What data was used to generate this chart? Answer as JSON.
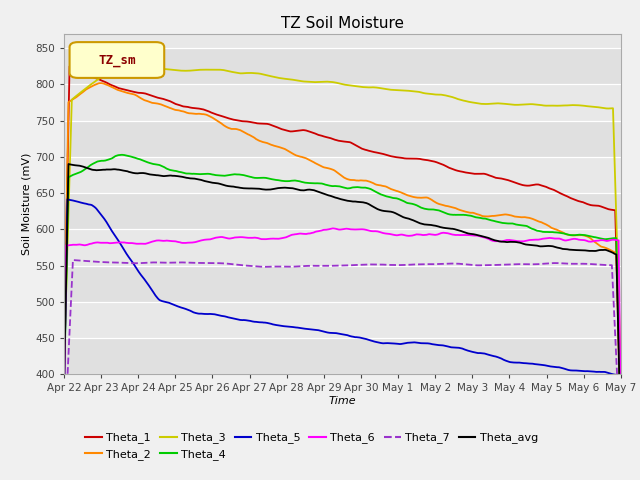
{
  "title": "TZ Soil Moisture",
  "xlabel": "Time",
  "ylabel": "Soil Moisture (mV)",
  "ylim": [
    400,
    870
  ],
  "yticks": [
    400,
    450,
    500,
    550,
    600,
    650,
    700,
    750,
    800,
    850
  ],
  "xtick_labels": [
    "Apr 22",
    "Apr 23",
    "Apr 24",
    "Apr 25",
    "Apr 26",
    "Apr 27",
    "Apr 28",
    "Apr 29",
    "Apr 30",
    "May 1",
    "May 2",
    "May 3",
    "May 4",
    "May 5",
    "May 6",
    "May 7"
  ],
  "bg_color": "#f0f0f0",
  "plot_bg": "#e8e8e8",
  "plot_bg_alt": "#d8d8d8",
  "legend_label": "TZ_sm",
  "legend_bg": "#ffffcc",
  "legend_border": "#cc9900",
  "series_order": [
    "Theta_1",
    "Theta_2",
    "Theta_3",
    "Theta_4",
    "Theta_5",
    "Theta_6",
    "Theta_7",
    "Theta_avg"
  ],
  "series": {
    "Theta_1": {
      "color": "#cc0000"
    },
    "Theta_2": {
      "color": "#ff8800"
    },
    "Theta_3": {
      "color": "#cccc00"
    },
    "Theta_4": {
      "color": "#00cc00"
    },
    "Theta_5": {
      "color": "#0000cc"
    },
    "Theta_6": {
      "color": "#ff00ff"
    },
    "Theta_7": {
      "color": "#9933cc"
    },
    "Theta_avg": {
      "color": "#000000"
    }
  }
}
